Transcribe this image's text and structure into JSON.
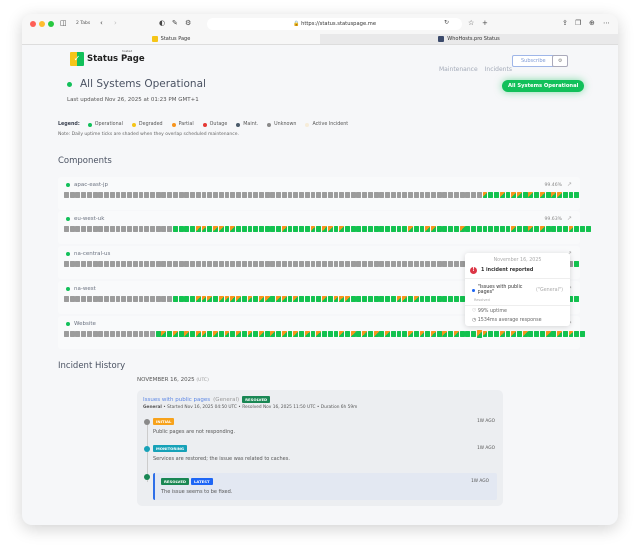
{
  "browser": {
    "tabs_count": "2 Tabs",
    "url": "https://status.statuspage.me",
    "tabs": [
      {
        "label": "Status Page",
        "active": true
      },
      {
        "label": "WhoHosts.pro Status",
        "active": false
      }
    ]
  },
  "header": {
    "logo_text": "Status Page",
    "logo_badge": "hosted",
    "nav": [
      "Maintenance",
      "Incidents"
    ],
    "subscribe_label": "Subscribe",
    "settings_icon": "gear-icon"
  },
  "status": {
    "title": "All Systems Operational",
    "last_updated": "Last updated Nov 26, 2025 at 01:23 PM GMT+1",
    "badge": "All Systems Operational"
  },
  "legend": {
    "label": "Legend:",
    "items": [
      {
        "label": "Operational",
        "color": "#12c05a"
      },
      {
        "label": "Degraded",
        "color": "#f5c518"
      },
      {
        "label": "Partial",
        "color": "#f7941d"
      },
      {
        "label": "Outage",
        "color": "#e53935"
      },
      {
        "label": "Maint.",
        "color": "#4a5a6a"
      },
      {
        "label": "Unknown",
        "color": "#8a8a8a"
      },
      {
        "label": "Active Incident",
        "color": "#f6ecd9"
      }
    ],
    "note": "Note: Daily uptime ticks are shaded when they overlap scheduled maintenance."
  },
  "components": {
    "title": "Components",
    "items": [
      {
        "name": "apac-east-jp",
        "uptime": "99.46%",
        "days": "xxxxxxxxxxxxxxxxxxxxxxxxxxxxxxxxxxxxxxxxxxxxxxxxxxxxxxxxxxxxxxxxxxxxxxxxxpggpgppgpgpgppggg"
      },
      {
        "name": "eu-west-uk",
        "uptime": "99.63%",
        "days": "xxxxxxxxxxxxxxxxxxxggggppgppgpggggggggpggggpgppgpgggggggggggpggppggggpggggggggpggpgpggggpggg"
      },
      {
        "name": "na-central-us",
        "uptime": "",
        "days": "xxxxxxxxxxxxxxxxxxxxxxxxxxxxxxxxxxxxxxxxxxxxxxxxxxxxxxxxxxxxxxxxxxxxxxxxxxxxxxxxxxxxxxxxxg"
      },
      {
        "name": "na-west",
        "uptime": "",
        "days": "xxxxxxxxxxxxxxxxxxxggggpppgppppgpgppgppgpggggpgpppggggggggppgpggggggggpggpgggggggggpggpggg"
      },
      {
        "name": "Website",
        "uptime": "",
        "days": "xxxxxxxxxxxxxxxxgpgpgpgppgpgpgpgpgpgpgpgpgpgpgggpgpgpgpgpgggpgpgpgpgpggghpggpgpgpgggpgpgpgg"
      }
    ]
  },
  "tooltip": {
    "date": "November 16, 2025",
    "count": "1 incident reported",
    "incident": "\"Issues with public pages\"",
    "incident_group": "(\"General\")",
    "incident_status": "Resolved",
    "uptime": "99% uptime",
    "response": "1534ms average response"
  },
  "history": {
    "title": "Incident History",
    "date": "NOVEMBER 16, 2025",
    "tz": "(UTC)",
    "incident": {
      "title": "Issues with public pages",
      "group": "(General)",
      "badge": "RESOLVED",
      "meta_group": "General",
      "meta": " • Started Nov 16, 2025 04:50 UTC • Resolved Nov 16, 2025 11:50 UTC • Duration 6h 59m",
      "updates": [
        {
          "tag": "INITIAL",
          "tag_color": "#f7a21b",
          "text": "Public pages are not responding.",
          "ago": "1W AGO"
        },
        {
          "tag": "MONITORING",
          "tag_color": "#17a2b8",
          "text": "Services are restored; the issue was related to caches.",
          "ago": "1W AGO"
        },
        {
          "tag": "RESOLVED",
          "tag2": "LATEST",
          "tag_color": "#198754",
          "text": "The issue seems to be fixed.",
          "ago": "1W AGO"
        }
      ]
    }
  }
}
